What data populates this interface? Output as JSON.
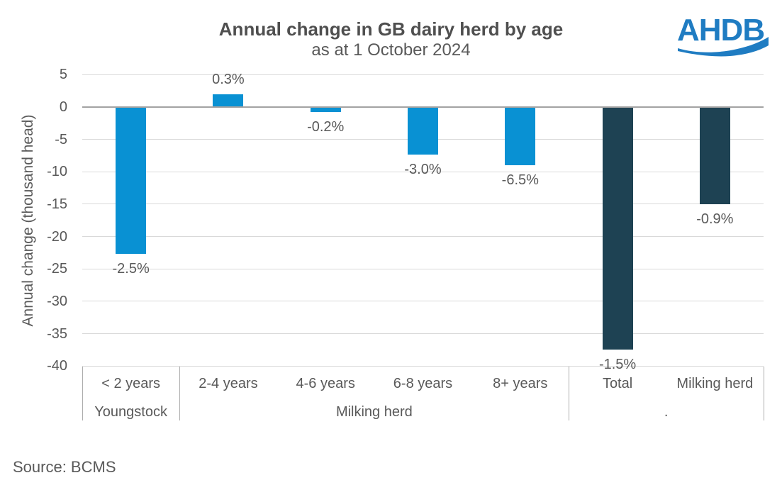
{
  "header": {
    "title": "Annual change in GB dairy herd by age",
    "subtitle": "as at 1 October 2024",
    "logo_text": "AHDB"
  },
  "chart_data": {
    "type": "bar",
    "title": "Annual change in GB dairy herd by age",
    "subtitle": "as at 1 October 2024",
    "ylabel": "Annual change (thousand head)",
    "xlabel": "",
    "ylim": [
      -40,
      5
    ],
    "yticks": [
      5,
      0,
      -5,
      -10,
      -15,
      -20,
      -25,
      -30,
      -35,
      -40
    ],
    "grid": true,
    "legend": "none",
    "categories": [
      "< 2 years",
      "2-4 years",
      "4-6 years",
      "6-8 years",
      "8+ years",
      "Total",
      "Milking herd"
    ],
    "group_labels": [
      {
        "label": "Youngstock",
        "start": 0,
        "end": 0
      },
      {
        "label": "Milking herd",
        "start": 1,
        "end": 4
      },
      {
        "label": ".",
        "start": 5,
        "end": 6
      }
    ],
    "series": [
      {
        "name": "Annual change (thousand head)",
        "values": [
          -22.7,
          2,
          -0.8,
          -7.3,
          -9,
          -37.5,
          -15
        ],
        "data_labels": [
          "-2.5%",
          "0.3%",
          "-0.2%",
          "-3.0%",
          "-6.5%",
          "-1.5%",
          "-0.9%"
        ],
        "bar_colors": [
          "#0991D3",
          "#0991D3",
          "#0991D3",
          "#0991D3",
          "#0991D3",
          "#1E4253",
          "#1E4253"
        ]
      }
    ]
  },
  "colors": {
    "light_blue": "#0991D3",
    "dark_navy": "#1E4253",
    "logo_blue": "#1F7CC2",
    "text_gray": "#595959",
    "gridline": "#D9D9D9",
    "zero_line": "#A3A3A3",
    "divider": "#ADADAD"
  },
  "footer": {
    "source": "Source: BCMS"
  }
}
